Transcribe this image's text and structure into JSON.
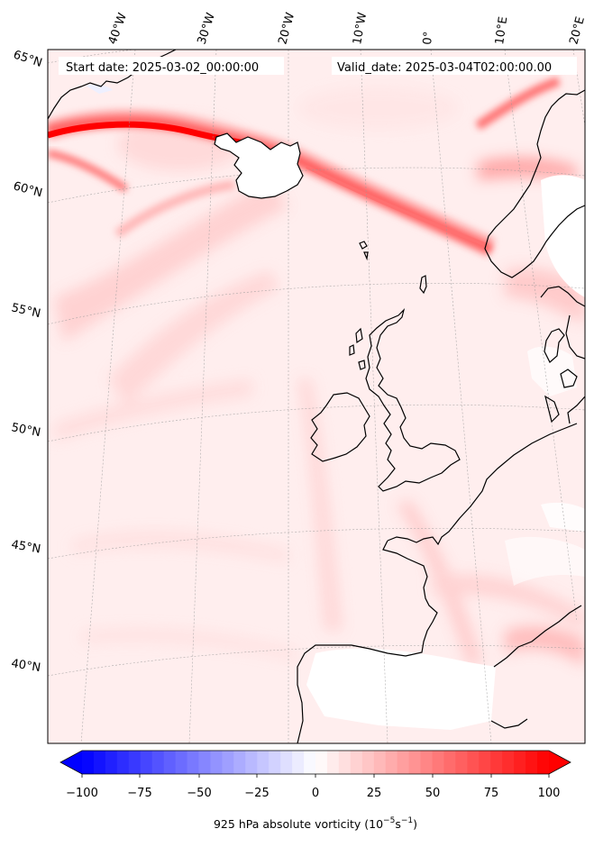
{
  "map": {
    "start_label": "Start date: 2025-03-02_00:00:00",
    "valid_label": "Valid_date: 2025-03-04T02:00:00.00",
    "lon_labels": [
      "40°W",
      "30°W",
      "20°W",
      "10°W",
      "0°",
      "10°E",
      "20°E"
    ],
    "lat_labels": [
      "65°N",
      "60°N",
      "55°N",
      "50°N",
      "45°N",
      "40°N"
    ],
    "colorbar": {
      "min": -100,
      "max": 100,
      "tick_labels": [
        "−100",
        "−75",
        "−50",
        "−25",
        "0",
        "25",
        "50",
        "75",
        "100"
      ],
      "label_main": "925 hPa absolute vorticity (10",
      "label_exp1": "−5",
      "label_mid": "s",
      "label_exp2": "−1",
      "label_end": ")",
      "low_color": "#0000ff",
      "mid_color": "#ffffff",
      "high_color": "#ff0000"
    }
  }
}
